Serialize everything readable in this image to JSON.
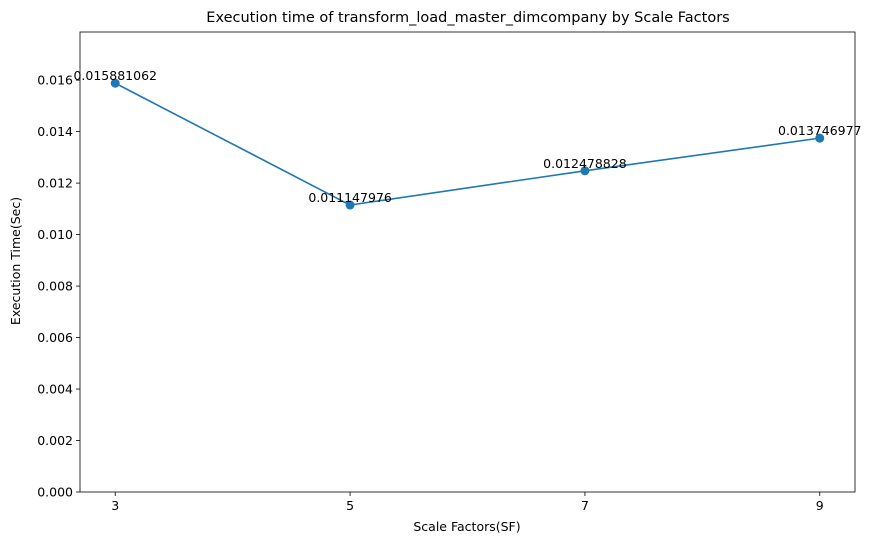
{
  "chart_data": {
    "type": "line",
    "title": "Execution time of transform_load_master_dimcompany by Scale Factors",
    "xlabel": "Scale Factors(SF)",
    "ylabel": "Execution Time(Sec)",
    "x": [
      3,
      5,
      7,
      9
    ],
    "series": [
      {
        "values": [
          0.015881062,
          0.011147976,
          0.012478828,
          0.013746977
        ],
        "data_labels": [
          "0.015881062",
          "0.011147976",
          "0.012478828",
          "0.013746977"
        ],
        "color": "#1f77b4"
      }
    ],
    "xticks": [
      "3",
      "5",
      "7",
      "9"
    ],
    "xlim": [
      2.7,
      9.3
    ],
    "ylim": [
      0,
      0.01787
    ],
    "yticks": [
      "0.000",
      "0.002",
      "0.004",
      "0.006",
      "0.008",
      "0.010",
      "0.012",
      "0.014",
      "0.016"
    ],
    "ytick_values": [
      0,
      0.002,
      0.004,
      0.006,
      0.008,
      0.01,
      0.012,
      0.014,
      0.016
    ],
    "grid": false,
    "legend": "none",
    "markers": "circle"
  }
}
